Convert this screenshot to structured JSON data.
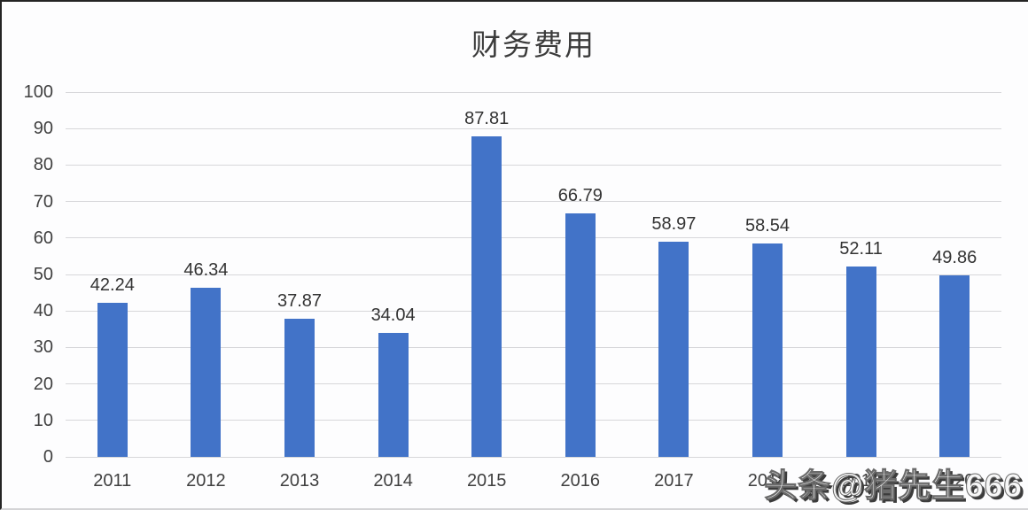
{
  "title": "财务费用",
  "watermark": "头条@猪先生666",
  "colors": {
    "bar": "#4273c8",
    "gridline": "#d7d7da",
    "axis_text": "#404040",
    "title_text": "#3b3b3b",
    "background": "#fdfdfe"
  },
  "chart_data": {
    "type": "bar",
    "title": "财务费用",
    "categories": [
      "2011",
      "2012",
      "2013",
      "2014",
      "2015",
      "2016",
      "2017",
      "2018",
      "2019",
      "2020"
    ],
    "x_labels_fully_visible": [
      "2011",
      "2012",
      "2013",
      "2014",
      "2015",
      "2016",
      "2017",
      "2018"
    ],
    "values": [
      42.24,
      46.34,
      37.87,
      34.04,
      87.81,
      66.79,
      58.97,
      58.54,
      52.11,
      49.86
    ],
    "data_labels": [
      "42.24",
      "46.34",
      "37.87",
      "34.04",
      "87.81",
      "66.79",
      "58.97",
      "58.54",
      "52.11",
      "49.86"
    ],
    "xlabel": "",
    "ylabel": "",
    "ylim": [
      0,
      100
    ],
    "ytick_step": 10,
    "ytick_labels": [
      "0",
      "10",
      "20",
      "30",
      "40",
      "50",
      "60",
      "70",
      "80",
      "90",
      "100"
    ],
    "grid": true,
    "legend": false,
    "layout_note": "last two x-axis tick labels are obscured by the watermark overlay"
  }
}
